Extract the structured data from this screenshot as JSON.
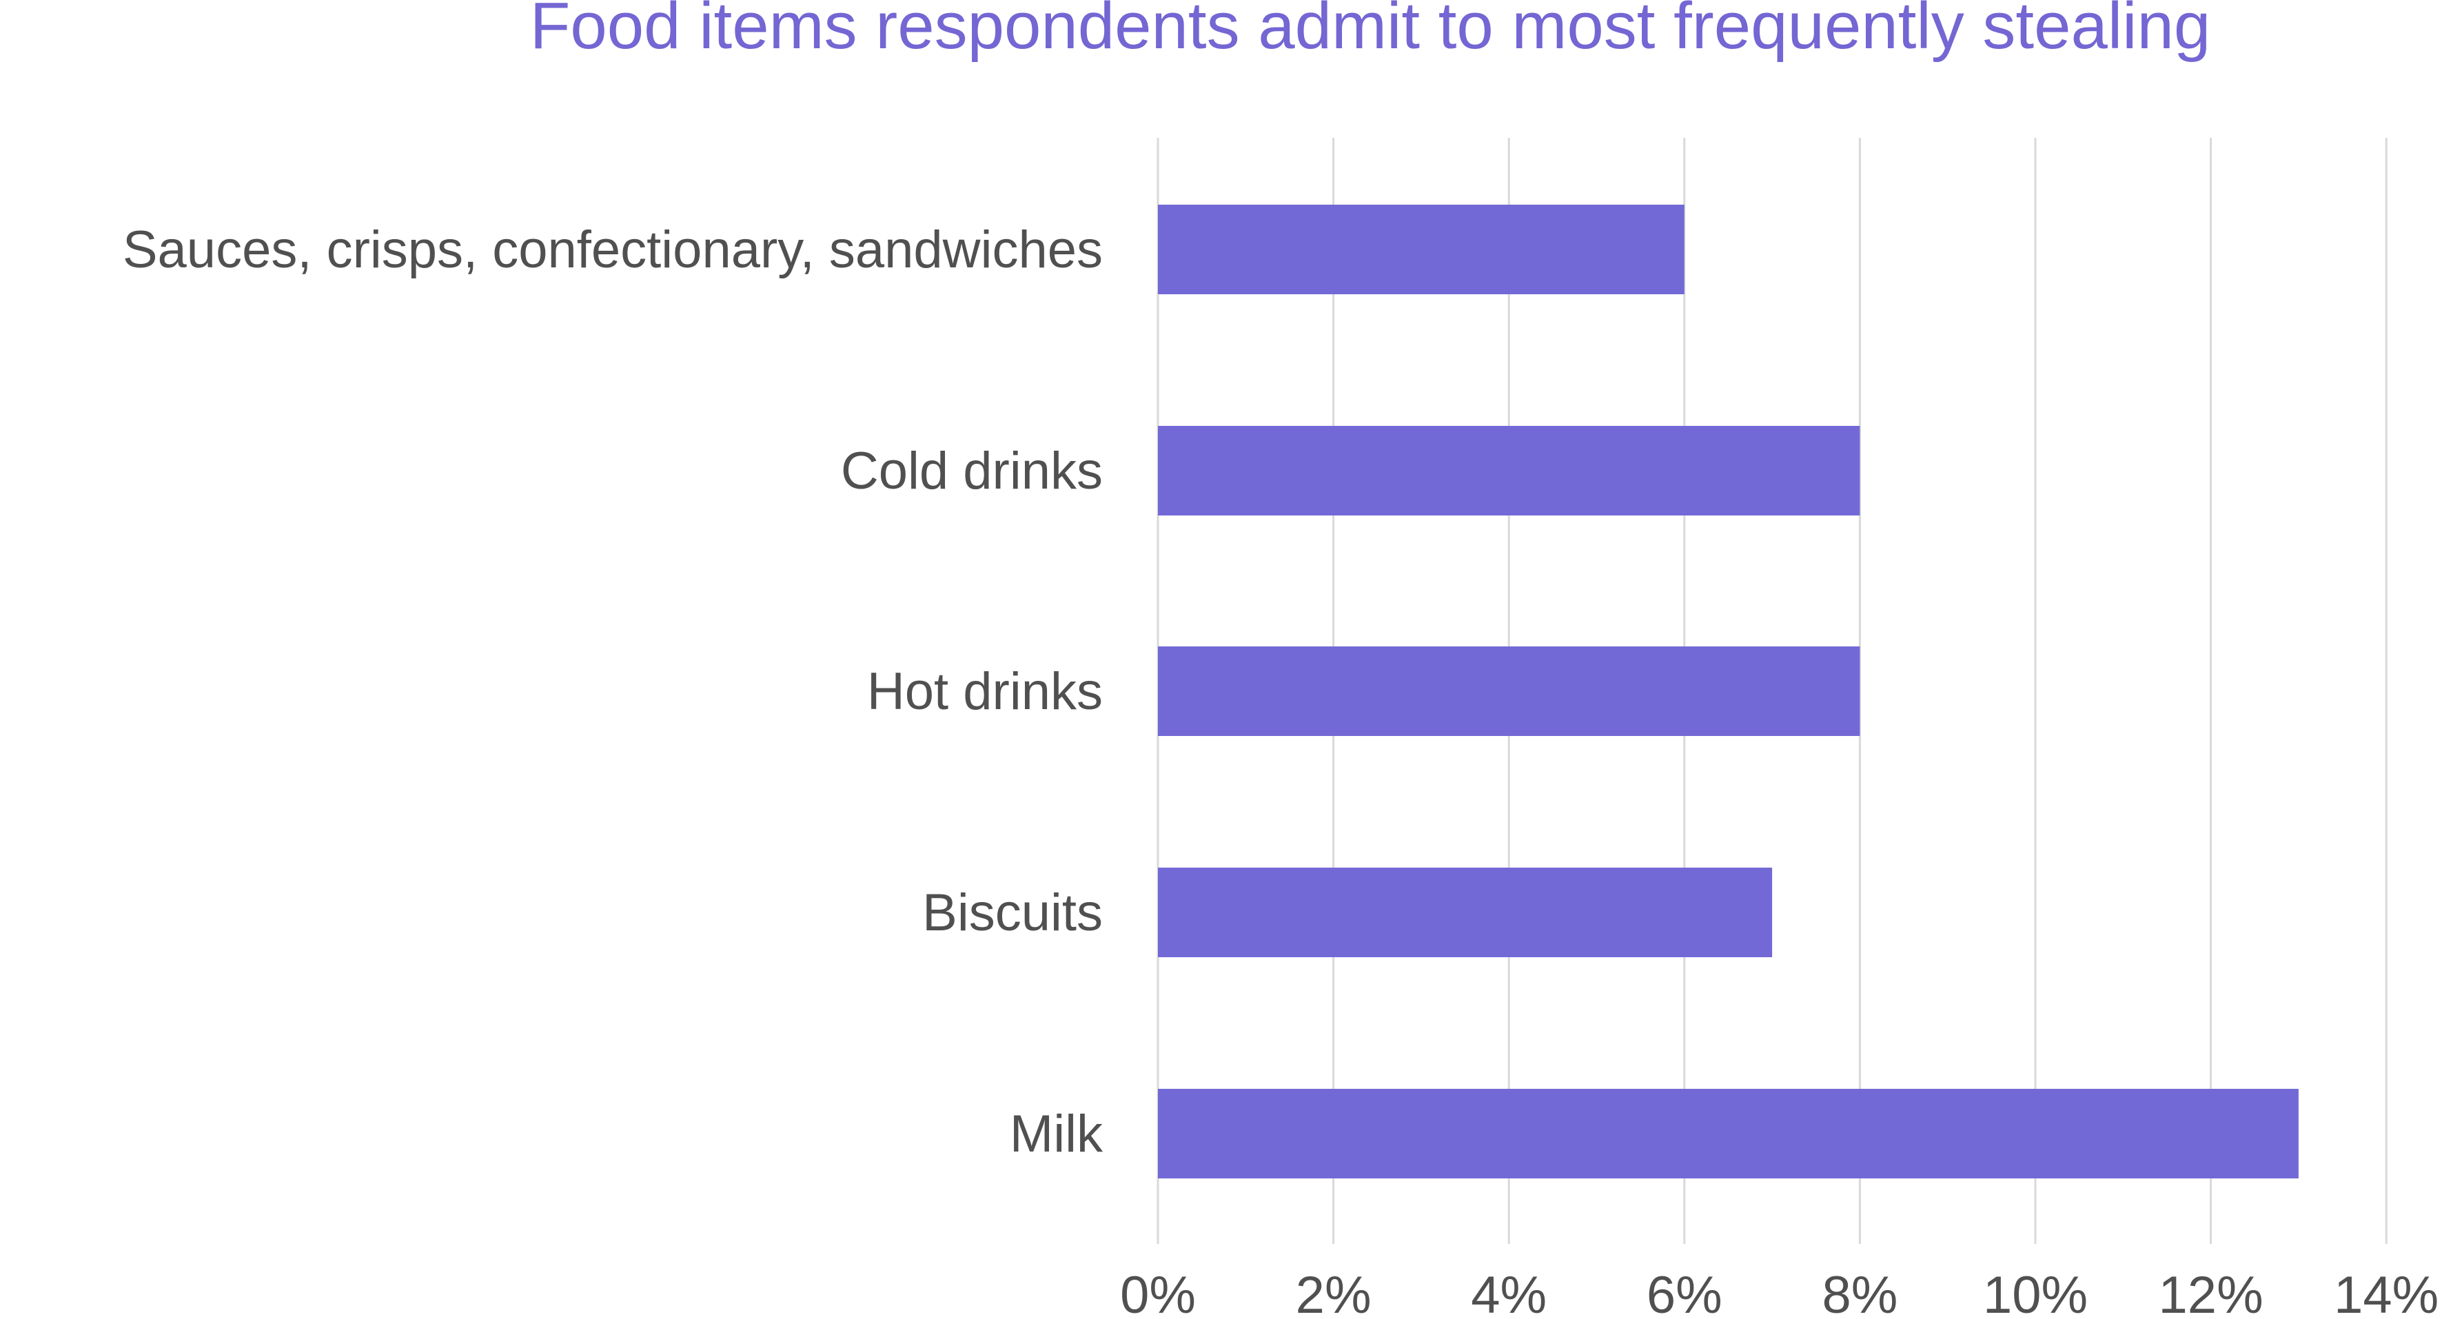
{
  "chart_data": {
    "type": "bar",
    "orientation": "horizontal",
    "title": "Food items respondents admit to most frequently stealing",
    "categories": [
      "Sauces, crisps, confectionary, sandwiches",
      "Cold drinks",
      "Hot drinks",
      "Biscuits",
      "Milk"
    ],
    "values": [
      6,
      8,
      8,
      7,
      13
    ],
    "xlim": [
      0,
      14
    ],
    "x_ticks": [
      0,
      2,
      4,
      6,
      8,
      10,
      12,
      14
    ],
    "x_tick_labels": [
      "0%",
      "2%",
      "4%",
      "6%",
      "8%",
      "10%",
      "12%",
      "14%"
    ],
    "xlabel": "",
    "ylabel": "",
    "grid": true,
    "legend": "none",
    "bar_color": "#7369d6",
    "title_color": "#7466d3"
  }
}
